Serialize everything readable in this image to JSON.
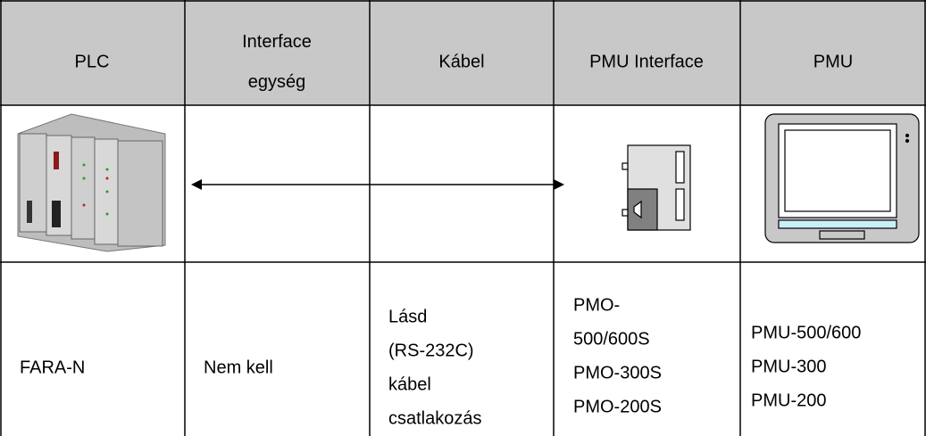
{
  "header": {
    "cells": [
      [
        "PLC"
      ],
      [
        "Interface",
        "egység"
      ],
      [
        "Kábel"
      ],
      [
        "PMU Interface"
      ],
      [
        "PMU"
      ]
    ]
  },
  "table": {
    "rows": [
      [
        [
          "FARA-N"
        ],
        [
          "Nem kell"
        ],
        [
          "Lásd",
          "(RS-232C)",
          "kábel",
          "csatlakozás"
        ],
        [
          "PMO-",
          "500/600S",
          "PMO-300S",
          "PMO-200S"
        ],
        [
          "PMU-500/600",
          "PMU-300",
          "PMU-200"
        ]
      ]
    ]
  }
}
